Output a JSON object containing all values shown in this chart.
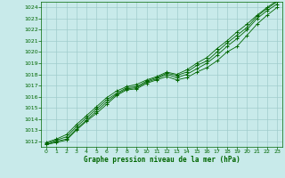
{
  "title": "Graphe pression niveau de la mer (hPa)",
  "bg_color": "#c8eaea",
  "grid_color": "#a0cccc",
  "line_color": "#006600",
  "xlim": [
    -0.5,
    23.5
  ],
  "ylim": [
    1011.5,
    1024.5
  ],
  "yticks": [
    1012,
    1013,
    1014,
    1015,
    1016,
    1017,
    1018,
    1019,
    1020,
    1021,
    1022,
    1023,
    1024
  ],
  "xticks": [
    0,
    1,
    2,
    3,
    4,
    5,
    6,
    7,
    8,
    9,
    10,
    11,
    12,
    13,
    14,
    15,
    16,
    17,
    18,
    19,
    20,
    21,
    22,
    23
  ],
  "series": [
    [
      1011.7,
      1011.9,
      1012.1,
      1013.0,
      1013.8,
      1014.5,
      1015.3,
      1016.1,
      1016.6,
      1016.7,
      1017.2,
      1017.5,
      1017.8,
      1017.5,
      1017.7,
      1018.2,
      1018.6,
      1019.2,
      1020.0,
      1020.5,
      1021.5,
      1022.5,
      1023.3,
      1024.0
    ],
    [
      1011.7,
      1012.0,
      1012.2,
      1013.1,
      1013.9,
      1014.7,
      1015.5,
      1016.2,
      1016.7,
      1016.8,
      1017.3,
      1017.6,
      1018.0,
      1017.7,
      1018.0,
      1018.5,
      1019.0,
      1019.7,
      1020.5,
      1021.2,
      1022.0,
      1023.0,
      1023.7,
      1024.3
    ],
    [
      1011.8,
      1012.1,
      1012.4,
      1013.3,
      1014.1,
      1014.9,
      1015.7,
      1016.3,
      1016.8,
      1016.9,
      1017.4,
      1017.7,
      1018.1,
      1017.9,
      1018.2,
      1018.8,
      1019.2,
      1020.0,
      1020.8,
      1021.5,
      1022.2,
      1023.2,
      1023.9,
      1024.5
    ],
    [
      1011.9,
      1012.2,
      1012.6,
      1013.5,
      1014.3,
      1015.1,
      1015.9,
      1016.5,
      1016.9,
      1017.1,
      1017.5,
      1017.8,
      1018.2,
      1018.0,
      1018.4,
      1019.0,
      1019.5,
      1020.3,
      1021.0,
      1021.8,
      1022.5,
      1023.3,
      1024.0,
      1024.6
    ]
  ]
}
